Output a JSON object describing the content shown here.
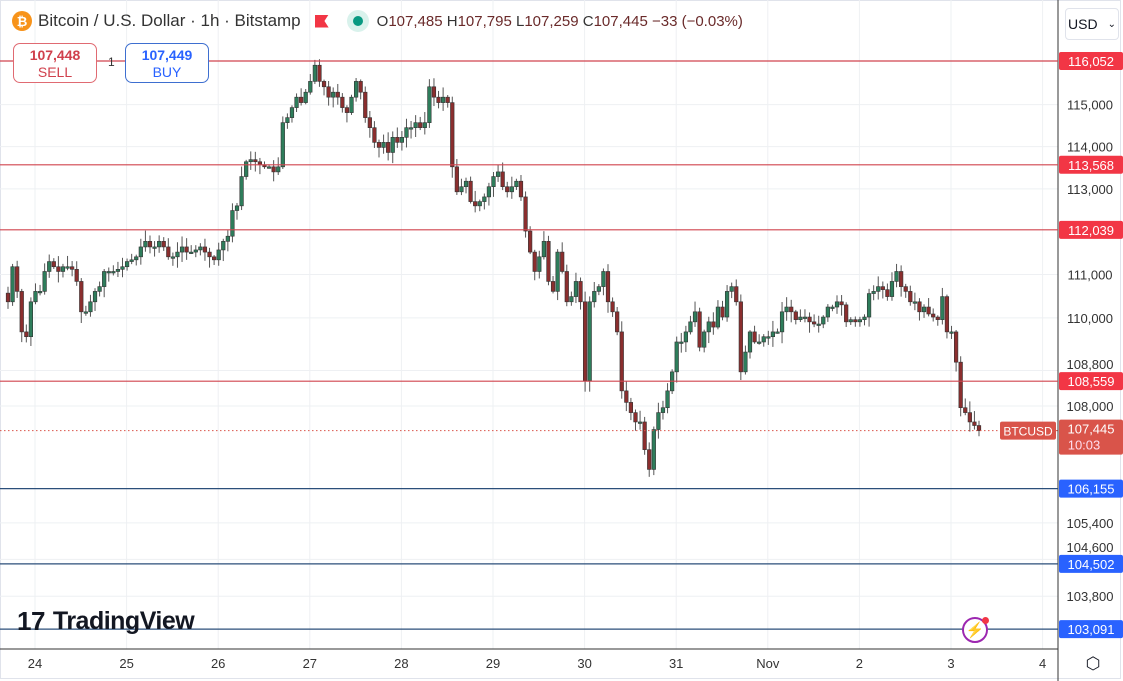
{
  "header": {
    "symbol_icon": "bitcoin-icon",
    "title": "Bitcoin / U.S. Dollar · 1h · Bitstamp",
    "open_label": "O",
    "open": "107,485",
    "high_label": "H",
    "high": "107,795",
    "low_label": "L",
    "low": "107,259",
    "close_label": "C",
    "close": "107,445",
    "change": "−33 (−0.03%)"
  },
  "trade": {
    "sell_price": "107,448",
    "sell_label": "SELL",
    "spread": "1",
    "buy_price": "107,449",
    "buy_label": "BUY"
  },
  "currency": "USD",
  "brand": "TradingView",
  "colors": {
    "up": "#2e7d5b",
    "down": "#8b2e2e",
    "resistance": "#d0454f",
    "support": "#2b4f7a",
    "label_red": "#f23645",
    "label_blue": "#2962ff",
    "last_price": "#d9544a"
  },
  "chart_data": {
    "type": "candlestick",
    "symbol": "BTCUSD",
    "interval": "1h",
    "y_scale": "log",
    "ylim": [
      102900,
      116900
    ],
    "grid": true,
    "x_ticks": [
      "24",
      "25",
      "26",
      "27",
      "28",
      "29",
      "30",
      "31",
      "Nov",
      "2",
      "3",
      "4"
    ],
    "y_ticks": [
      "115,000",
      "114,000",
      "113,000",
      "111,000",
      "110,000",
      "108,800",
      "108,000",
      "105,400",
      "104,600",
      "103,800"
    ],
    "y_tick_values": [
      115000,
      114000,
      113000,
      111000,
      110000,
      108800,
      108000,
      105400,
      104600,
      103800
    ],
    "levels": [
      {
        "value": 116052,
        "label": "116,052",
        "kind": "resistance"
      },
      {
        "value": 113568,
        "label": "113,568",
        "kind": "resistance"
      },
      {
        "value": 112039,
        "label": "112,039",
        "kind": "resistance"
      },
      {
        "value": 108559,
        "label": "108,559",
        "kind": "resistance"
      },
      {
        "value": 106155,
        "label": "106,155",
        "kind": "support"
      },
      {
        "value": 104502,
        "label": "104,502",
        "kind": "support"
      },
      {
        "value": 103091,
        "label": "103,091",
        "kind": "support"
      }
    ],
    "last_price": {
      "value": 107445,
      "label": "107,445",
      "countdown": "10:03",
      "tag": "BTCUSD"
    },
    "closes": [
      110370,
      111180,
      110610,
      109680,
      109570,
      110370,
      110610,
      110610,
      111070,
      111300,
      111180,
      111070,
      111180,
      111180,
      111120,
      110840,
      110140,
      110140,
      110370,
      110610,
      110720,
      111070,
      111070,
      111070,
      111120,
      111180,
      111300,
      111340,
      111410,
      111640,
      111770,
      111640,
      111640,
      111770,
      111640,
      111410,
      111410,
      111520,
      111640,
      111520,
      111520,
      111570,
      111640,
      111520,
      111410,
      111340,
      111570,
      111770,
      111890,
      112490,
      112600,
      113290,
      113640,
      113690,
      113640,
      113570,
      113520,
      113520,
      113400,
      113520,
      114570,
      114690,
      114930,
      115180,
      115050,
      115300,
      115560,
      115950,
      115560,
      115430,
      115180,
      115300,
      115180,
      114930,
      114810,
      115180,
      115560,
      115300,
      114690,
      114450,
      114100,
      113980,
      114100,
      113860,
      114220,
      114100,
      114220,
      114450,
      114450,
      114570,
      114450,
      114570,
      115430,
      115180,
      115050,
      115180,
      115050,
      113520,
      112930,
      113050,
      113180,
      112700,
      112600,
      112700,
      112810,
      113050,
      113290,
      113400,
      113050,
      112930,
      113050,
      113180,
      112810,
      112010,
      111520,
      111070,
      111410,
      111770,
      110840,
      110610,
      111520,
      111070,
      110370,
      110490,
      110840,
      110370,
      108570,
      110370,
      110610,
      110720,
      111070,
      110370,
      110140,
      109680,
      108340,
      108080,
      107850,
      107640,
      107640,
      107020,
      106580,
      107470,
      107850,
      107960,
      108340,
      108770,
      109450,
      109450,
      109680,
      109910,
      110140,
      109330,
      109680,
      109910,
      109790,
      110250,
      110020,
      110610,
      110720,
      110370,
      108770,
      109220,
      109680,
      109450,
      109450,
      109570,
      109570,
      109680,
      109680,
      110140,
      110250,
      110140,
      109960,
      110020,
      110020,
      109910,
      109860,
      109860,
      110020,
      110250,
      110250,
      110370,
      110300,
      109910,
      109960,
      109910,
      109960,
      110020,
      110560,
      110610,
      110720,
      110650,
      110490,
      110840,
      111070,
      110720,
      110610,
      110370,
      110370,
      110140,
      110250,
      110090,
      110020,
      109960,
      110490,
      109680,
      109680,
      108990,
      107960,
      107850,
      107640,
      107560,
      107445
    ]
  }
}
